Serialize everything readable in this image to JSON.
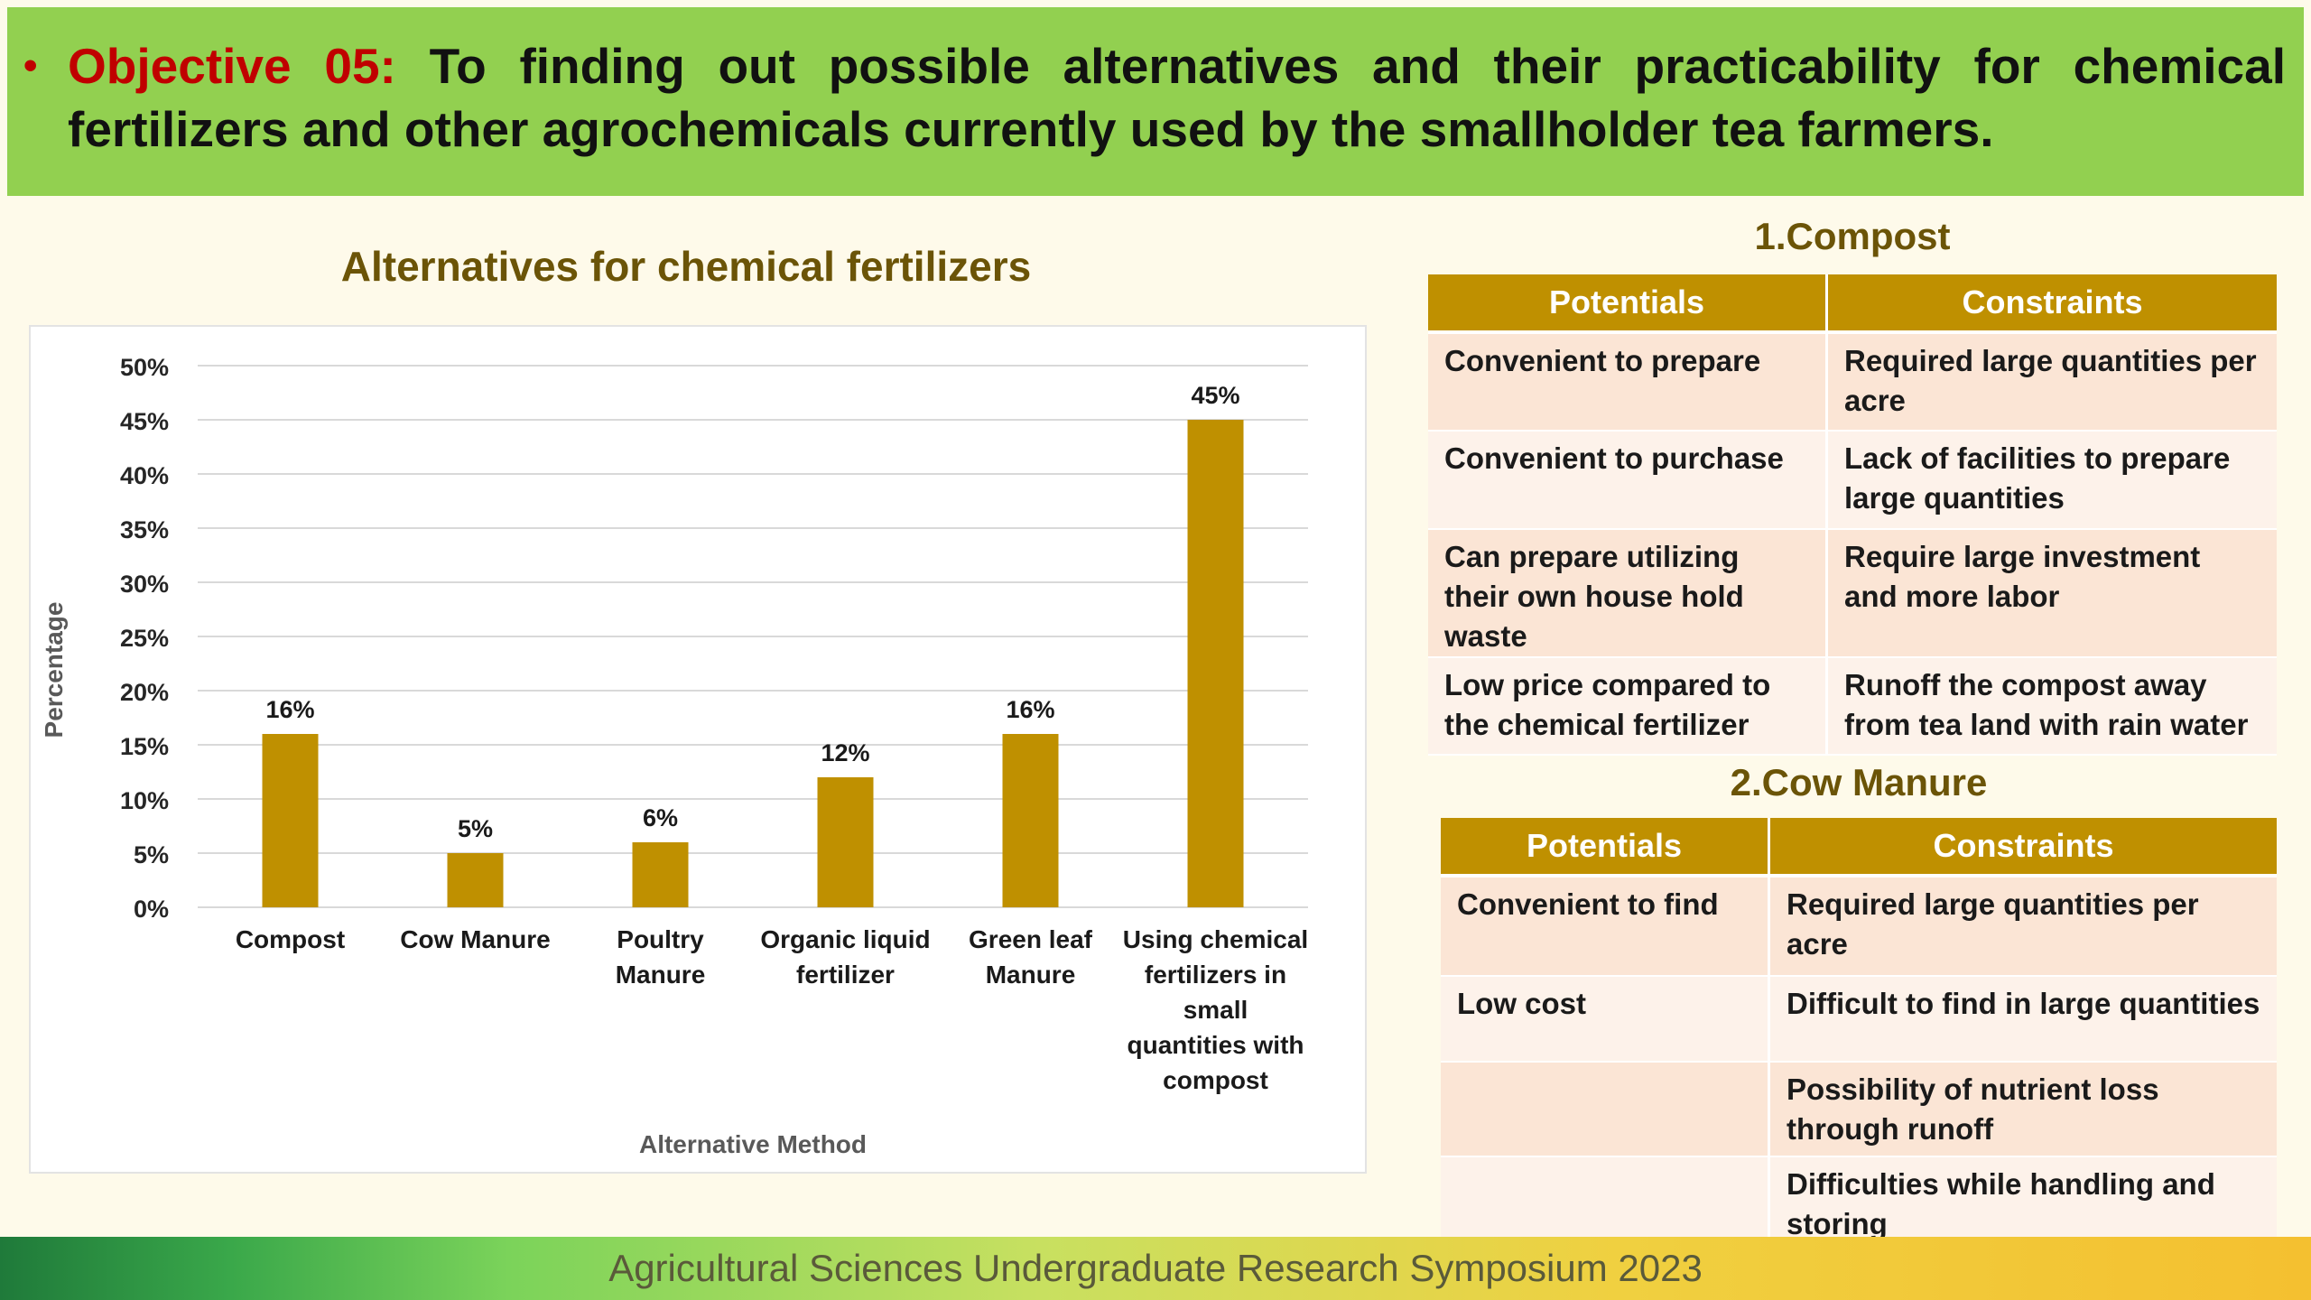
{
  "banner": {
    "bullet": "•",
    "objective_label": "Objective 05:",
    "line1_rest": " To finding out possible alternatives and their practicability for chemical",
    "line2": "fertilizers and other agrochemicals currently used by the smallholder tea farmers."
  },
  "chart_title": "Alternatives for chemical fertilizers",
  "chart_data": {
    "type": "bar",
    "title": "Alternatives for chemical fertilizers",
    "xlabel": "Alternative Method",
    "ylabel": "Percentage",
    "ylim": [
      0,
      50
    ],
    "yticks": [
      "0%",
      "5%",
      "10%",
      "15%",
      "20%",
      "25%",
      "30%",
      "35%",
      "40%",
      "45%",
      "50%"
    ],
    "grid": true,
    "bar_color": "#bf9000",
    "categories": [
      [
        "Compost"
      ],
      [
        "Cow Manure"
      ],
      [
        "Poultry",
        "Manure"
      ],
      [
        "Organic liquid",
        "fertilizer"
      ],
      [
        "Green leaf",
        "Manure"
      ],
      [
        "Using chemical",
        "fertilizers in",
        "small",
        "quantities with",
        "compost"
      ]
    ],
    "values": [
      16,
      5,
      6,
      12,
      16,
      45
    ],
    "data_labels": [
      "16%",
      "5%",
      "6%",
      "12%",
      "16%",
      "45%"
    ]
  },
  "compost": {
    "title": "1.Compost",
    "headers": [
      "Potentials",
      "Constraints"
    ],
    "rows": [
      [
        "Convenient  to prepare",
        "Required large quantities per acre"
      ],
      [
        "Convenient  to purchase",
        "Lack of facilities to prepare large quantities"
      ],
      [
        "Can prepare utilizing their own house hold waste",
        "Require large investment and more labor"
      ],
      [
        "Low price compared to the chemical fertilizer",
        "Runoff the compost away from tea land with rain water"
      ]
    ]
  },
  "cow_manure": {
    "title": "2.Cow Manure",
    "headers": [
      "Potentials",
      "Constraints"
    ],
    "rows": [
      [
        "Convenient to find",
        "Required large quantities per acre"
      ],
      [
        "Low cost",
        "Difficult to find in large quantities"
      ],
      [
        "",
        "Possibility of nutrient loss through runoff"
      ],
      [
        "",
        "Difficulties while handling and storing"
      ]
    ]
  },
  "footer": "Agricultural Sciences Undergraduate Research Symposium 2023",
  "colors": {
    "banner_bg": "#92d050",
    "objective_red": "#c00000",
    "gold": "#bf9000",
    "title_brown": "#6b5407"
  }
}
